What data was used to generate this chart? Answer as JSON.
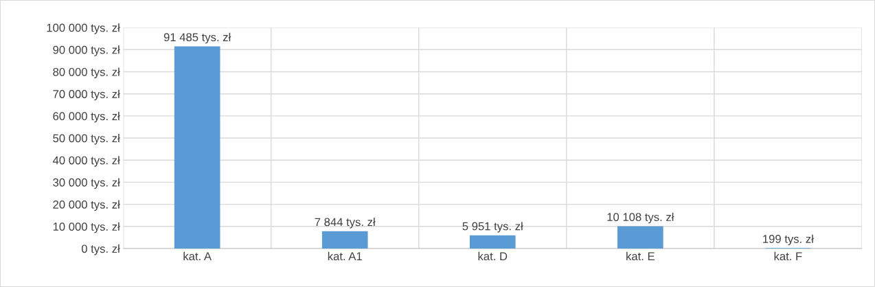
{
  "chart_data": {
    "type": "bar",
    "categories": [
      "kat. A",
      "kat. A1",
      "kat. D",
      "kat. E",
      "kat. F"
    ],
    "values": [
      91485,
      7844,
      5951,
      10108,
      199
    ],
    "value_labels": [
      "91 485 tys. zł",
      "7 844 tys. zł",
      "5 951 tys. zł",
      "10 108 tys. zł",
      "199 tys. zł"
    ],
    "color": "#5b9bd5",
    "ylim": [
      0,
      100000
    ],
    "yticks": [
      {
        "value": 0,
        "label": "0 tys. zł"
      },
      {
        "value": 10000,
        "label": "10 000 tys. zł"
      },
      {
        "value": 20000,
        "label": "20 000 tys. zł"
      },
      {
        "value": 30000,
        "label": "30 000 tys. zł"
      },
      {
        "value": 40000,
        "label": "40 000 tys. zł"
      },
      {
        "value": 50000,
        "label": "50 000 tys. zł"
      },
      {
        "value": 60000,
        "label": "60 000 tys. zł"
      },
      {
        "value": 70000,
        "label": "70 000 tys. zł"
      },
      {
        "value": 80000,
        "label": "80 000 tys. zł"
      },
      {
        "value": 90000,
        "label": "90 000 tys. zł"
      },
      {
        "value": 100000,
        "label": "100 000 tys. zł"
      }
    ],
    "grid": true,
    "legend": false
  }
}
